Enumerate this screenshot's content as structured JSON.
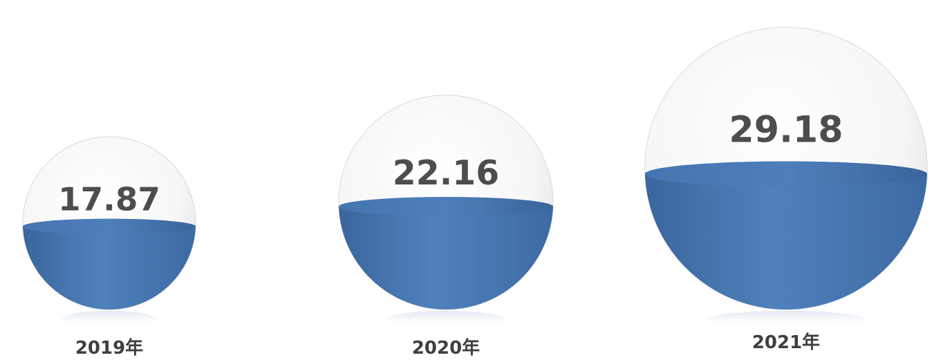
{
  "chart_data": {
    "type": "bubble",
    "title": "",
    "categories": [
      "2019年",
      "2020年",
      "2021年"
    ],
    "values": [
      17.87,
      22.16,
      29.18
    ],
    "labels": [
      "17.87",
      "22.16",
      "29.18"
    ],
    "colors": {
      "fill": "#4a7ab5",
      "fill_dark": "#3a6398",
      "sphere_edge": "#d9d9d9",
      "value_text": "#4d4d4d",
      "year_text": "#3f3f3f"
    }
  }
}
